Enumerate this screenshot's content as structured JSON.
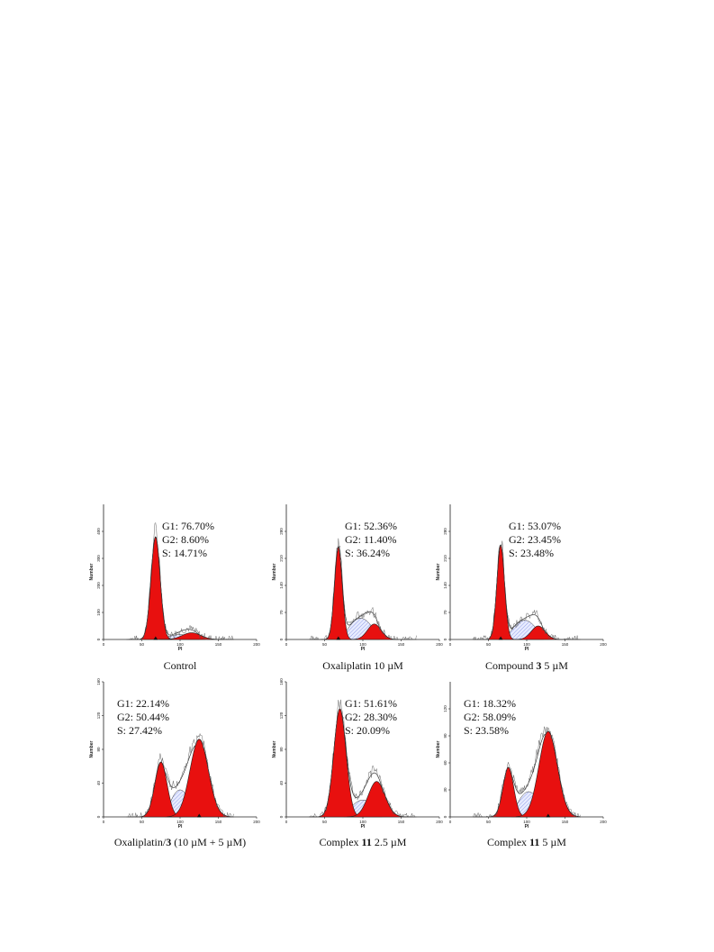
{
  "chart_data": [
    {
      "type": "area",
      "caption": "Control",
      "xlabel": "PI",
      "ylabel": "Number",
      "xlim": [
        0,
        200
      ],
      "ylim": [
        0,
        500
      ],
      "xticks": [
        0,
        50,
        100,
        150,
        200
      ],
      "yticks": [
        0,
        100,
        200,
        300,
        400
      ],
      "stats": [
        "G1: 76.70%",
        "G2: 8.60%",
        "S: 14.71%"
      ],
      "g1": {
        "mean": 68,
        "sd": 6,
        "height": 380
      },
      "g2": {
        "mean": 115,
        "sd": 12,
        "height": 25
      },
      "s": {
        "from": 75,
        "to": 125,
        "height": 18
      },
      "peak_marker_x": 68,
      "stats_pos": "top-right"
    },
    {
      "type": "area",
      "caption": "Oxaliplatin 10 µM",
      "xlabel": "PI",
      "ylabel": "Number",
      "xlim": [
        0,
        200
      ],
      "ylim": [
        0,
        350
      ],
      "xticks": [
        0,
        50,
        100,
        150,
        200
      ],
      "yticks": [
        0,
        70,
        140,
        210,
        280
      ],
      "stats": [
        "G1: 52.36%",
        "G2: 11.40%",
        "S: 36.24%"
      ],
      "g1": {
        "mean": 68,
        "sd": 5,
        "height": 240
      },
      "g2": {
        "mean": 115,
        "sd": 9,
        "height": 40
      },
      "s": {
        "from": 72,
        "to": 122,
        "height": 55
      },
      "peak_marker_x": 68,
      "stats_pos": "top-right"
    },
    {
      "type": "area",
      "caption": "Compound 3  5 µM",
      "caption_bold": "3",
      "xlabel": "PI",
      "ylabel": "Number",
      "xlim": [
        0,
        200
      ],
      "ylim": [
        0,
        350
      ],
      "xticks": [
        0,
        50,
        100,
        150,
        200
      ],
      "yticks": [
        0,
        70,
        140,
        210,
        280
      ],
      "stats": [
        "G1: 53.07%",
        "G2: 23.45%",
        "S: 23.48%"
      ],
      "g1": {
        "mean": 66,
        "sd": 5,
        "height": 245
      },
      "g2": {
        "mean": 115,
        "sd": 9,
        "height": 35
      },
      "s": {
        "from": 72,
        "to": 122,
        "height": 50
      },
      "peak_marker_x": 66,
      "stats_pos": "top-right"
    },
    {
      "type": "area",
      "caption": "Oxaliplatin/3 (10 µM + 5 µM)",
      "caption_bold": "3",
      "xlabel": "PI",
      "ylabel": "Number",
      "xlim": [
        0,
        200
      ],
      "ylim": [
        0,
        160
      ],
      "xticks": [
        0,
        50,
        100,
        150,
        200
      ],
      "yticks": [
        0,
        40,
        80,
        120,
        160
      ],
      "stats": [
        "G1: 22.14%",
        "G2: 50.44%",
        "S: 27.42%"
      ],
      "g1": {
        "mean": 75,
        "sd": 8,
        "height": 65
      },
      "g2": {
        "mean": 125,
        "sd": 12,
        "height": 92
      },
      "s": {
        "from": 80,
        "to": 120,
        "height": 32
      },
      "peak_marker_x": 125,
      "stats_pos": "top-left"
    },
    {
      "type": "area",
      "caption": "Complex 11  2.5 µM",
      "caption_bold": "11",
      "xlabel": "PI",
      "ylabel": "Number",
      "xlim": [
        0,
        200
      ],
      "ylim": [
        0,
        160
      ],
      "xticks": [
        0,
        50,
        100,
        150,
        200
      ],
      "yticks": [
        0,
        40,
        80,
        120,
        160
      ],
      "stats": [
        "G1: 51.61%",
        "G2: 28.30%",
        "S: 20.09%"
      ],
      "g1": {
        "mean": 70,
        "sd": 8,
        "height": 128
      },
      "g2": {
        "mean": 118,
        "sd": 11,
        "height": 42
      },
      "s": {
        "from": 75,
        "to": 125,
        "height": 20
      },
      "stats_pos": "top-right"
    },
    {
      "type": "area",
      "caption": "Complex 11  5 µM",
      "caption_bold": "11",
      "xlabel": "PI",
      "ylabel": "Number",
      "xlim": [
        0,
        200
      ],
      "ylim": [
        0,
        150
      ],
      "xticks": [
        0,
        50,
        100,
        150,
        200
      ],
      "yticks": [
        0,
        30,
        60,
        90,
        120
      ],
      "stats": [
        "G1: 18.32%",
        "G2: 58.09%",
        "S: 23.58%"
      ],
      "g1": {
        "mean": 76,
        "sd": 7,
        "height": 55
      },
      "g2": {
        "mean": 128,
        "sd": 12,
        "height": 95
      },
      "s": {
        "from": 80,
        "to": 125,
        "height": 28
      },
      "peak_marker_x": 128,
      "stats_pos": "top-left"
    }
  ]
}
